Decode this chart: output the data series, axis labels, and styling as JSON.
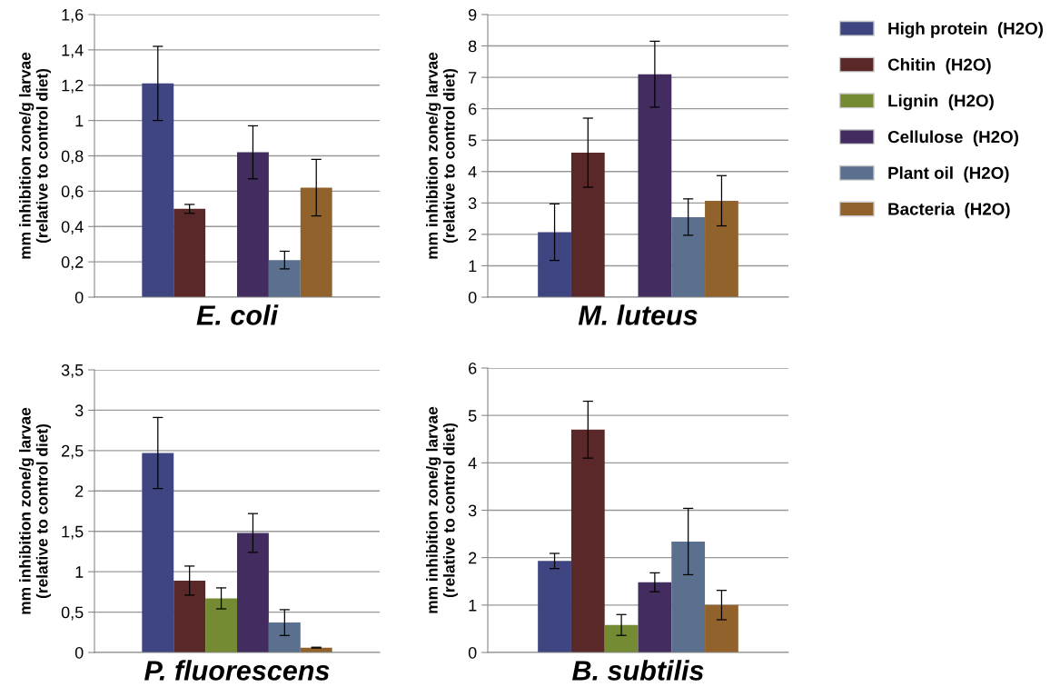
{
  "chart_data": [
    {
      "type": "bar",
      "categories": [
        "E. coli"
      ],
      "ylabel": "mm inhibition zone/g larvae\n(relative to control diet)",
      "ylim": [
        0,
        1.6
      ],
      "yticks": [
        0,
        {
          "value": 0.2,
          "label": "0,2"
        },
        {
          "value": 0.4,
          "label": "0,4"
        },
        {
          "value": 0.6,
          "label": "0,6"
        },
        {
          "value": 0.8,
          "label": "0,8"
        },
        1,
        {
          "value": 1.2,
          "label": "1,2"
        },
        {
          "value": 1.4,
          "label": "1,4"
        },
        {
          "value": 1.6,
          "label": "1,6"
        }
      ],
      "grid": "y",
      "series": [
        {
          "color": "#3f4580",
          "values": [
            1.21
          ],
          "errors": [
            0.21
          ]
        },
        {
          "color": "#5a2828",
          "values": [
            0.5
          ],
          "errors": [
            0.025
          ]
        },
        {
          "color": "#748b34",
          "values": [
            null
          ],
          "errors": [
            null
          ]
        },
        {
          "color": "#432c60",
          "values": [
            0.82
          ],
          "errors": [
            0.15
          ]
        },
        {
          "color": "#5a708e",
          "values": [
            0.21
          ],
          "errors": [
            0.05
          ]
        },
        {
          "color": "#91622b",
          "values": [
            0.62
          ],
          "errors": [
            0.16
          ]
        }
      ]
    },
    {
      "type": "bar",
      "categories": [
        "M. luteus"
      ],
      "ylabel": "mm inhibition zone/g larvae\n(relative to control diet)",
      "ylim": [
        0,
        9
      ],
      "yticks": [
        0,
        1,
        2,
        3,
        4,
        5,
        6,
        7,
        8,
        9
      ],
      "grid": "y",
      "legend": "right",
      "series": [
        {
          "name": "High protein  (H2O)",
          "color": "#3f4580",
          "values": [
            2.07
          ],
          "errors": [
            0.9
          ]
        },
        {
          "name": "Chitin  (H2O)",
          "color": "#5a2828",
          "values": [
            4.6
          ],
          "errors": [
            1.1
          ]
        },
        {
          "name": "Lignin  (H2O)",
          "color": "#748b34",
          "values": [
            null
          ],
          "errors": [
            null
          ]
        },
        {
          "name": "Cellulose  (H2O)",
          "color": "#432c60",
          "values": [
            7.1
          ],
          "errors": [
            1.05
          ]
        },
        {
          "name": "Plant oil  (H2O)",
          "color": "#5a708e",
          "values": [
            2.55
          ],
          "errors": [
            0.58
          ]
        },
        {
          "name": "Bacteria  (H2O)",
          "color": "#91622b",
          "values": [
            3.07
          ],
          "errors": [
            0.8
          ]
        }
      ]
    },
    {
      "type": "bar",
      "categories": [
        "P. fluorescens"
      ],
      "ylabel": "mm inhibition zone/g larvae\n(relative to control diet)",
      "ylim": [
        0,
        3.5
      ],
      "yticks": [
        0,
        {
          "value": 0.5,
          "label": "0,5"
        },
        1,
        {
          "value": 1.5,
          "label": "1,5"
        },
        2,
        {
          "value": 2.5,
          "label": "2,5"
        },
        3,
        {
          "value": 3.5,
          "label": "3,5"
        }
      ],
      "grid": "y",
      "series": [
        {
          "color": "#3f4580",
          "values": [
            2.47
          ],
          "errors": [
            0.44
          ]
        },
        {
          "color": "#5a2828",
          "values": [
            0.89
          ],
          "errors": [
            0.18
          ]
        },
        {
          "color": "#748b34",
          "values": [
            0.67
          ],
          "errors": [
            0.13
          ]
        },
        {
          "color": "#432c60",
          "values": [
            1.48
          ],
          "errors": [
            0.24
          ]
        },
        {
          "color": "#5a708e",
          "values": [
            0.37
          ],
          "errors": [
            0.16
          ]
        },
        {
          "color": "#91622b",
          "values": [
            0.06
          ],
          "errors": [
            0.005
          ]
        }
      ]
    },
    {
      "type": "bar",
      "categories": [
        "B. subtilis"
      ],
      "ylabel": "mm inhibition zone/g larvae\n(relative to control diet)",
      "ylim": [
        0,
        6
      ],
      "yticks": [
        0,
        1,
        2,
        3,
        4,
        5,
        6
      ],
      "grid": "y",
      "series": [
        {
          "color": "#3f4580",
          "values": [
            1.93
          ],
          "errors": [
            0.16
          ]
        },
        {
          "color": "#5a2828",
          "values": [
            4.7
          ],
          "errors": [
            0.6
          ]
        },
        {
          "color": "#748b34",
          "values": [
            0.58
          ],
          "errors": [
            0.22
          ]
        },
        {
          "color": "#432c60",
          "values": [
            1.48
          ],
          "errors": [
            0.2
          ]
        },
        {
          "color": "#5a708e",
          "values": [
            2.34
          ],
          "errors": [
            0.7
          ]
        },
        {
          "color": "#91622b",
          "values": [
            1.0
          ],
          "errors": [
            0.31
          ]
        }
      ]
    }
  ]
}
